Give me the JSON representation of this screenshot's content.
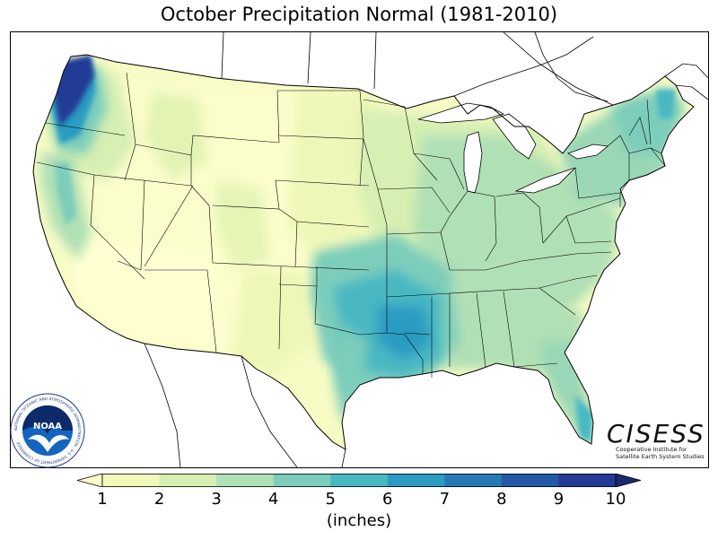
{
  "title": "October Precipitation Normal (1981-2010)",
  "map": {
    "subject": "contiguous United States",
    "variable": "precipitation normal",
    "boundaries": [
      "state borders",
      "Canada border",
      "Mexico border",
      "Great Lakes"
    ]
  },
  "colorbar": {
    "units_label": "(inches)",
    "ticks": [
      "1",
      "2",
      "3",
      "4",
      "5",
      "6",
      "7",
      "8",
      "9",
      "10"
    ],
    "bins": [
      {
        "range": "<1",
        "color": "#ffffcc"
      },
      {
        "range": "1-2",
        "color": "#f1f9b8"
      },
      {
        "range": "2-3",
        "color": "#d6efb2"
      },
      {
        "range": "3-4",
        "color": "#b0e0b5"
      },
      {
        "range": "4-5",
        "color": "#7ccdbb"
      },
      {
        "range": "5-6",
        "color": "#48b8c3"
      },
      {
        "range": "6-7",
        "color": "#2c9bc2"
      },
      {
        "range": "7-8",
        "color": "#2779b6"
      },
      {
        "range": "8-9",
        "color": "#2458a6"
      },
      {
        "range": "9-10",
        "color": "#233a95"
      },
      {
        "range": ">10",
        "color": "#1c2870"
      }
    ],
    "extend": "both"
  },
  "logos": {
    "noaa": {
      "text": "NOAA",
      "ring_text": "NATIONAL OCEANIC AND ATMOSPHERIC ADMINISTRATION · U.S. DEPARTMENT OF COMMERCE"
    },
    "cisess": {
      "name": "CISESS",
      "line1": "Cooperative Institute for",
      "line2": "Satellite Earth System Studies"
    }
  }
}
